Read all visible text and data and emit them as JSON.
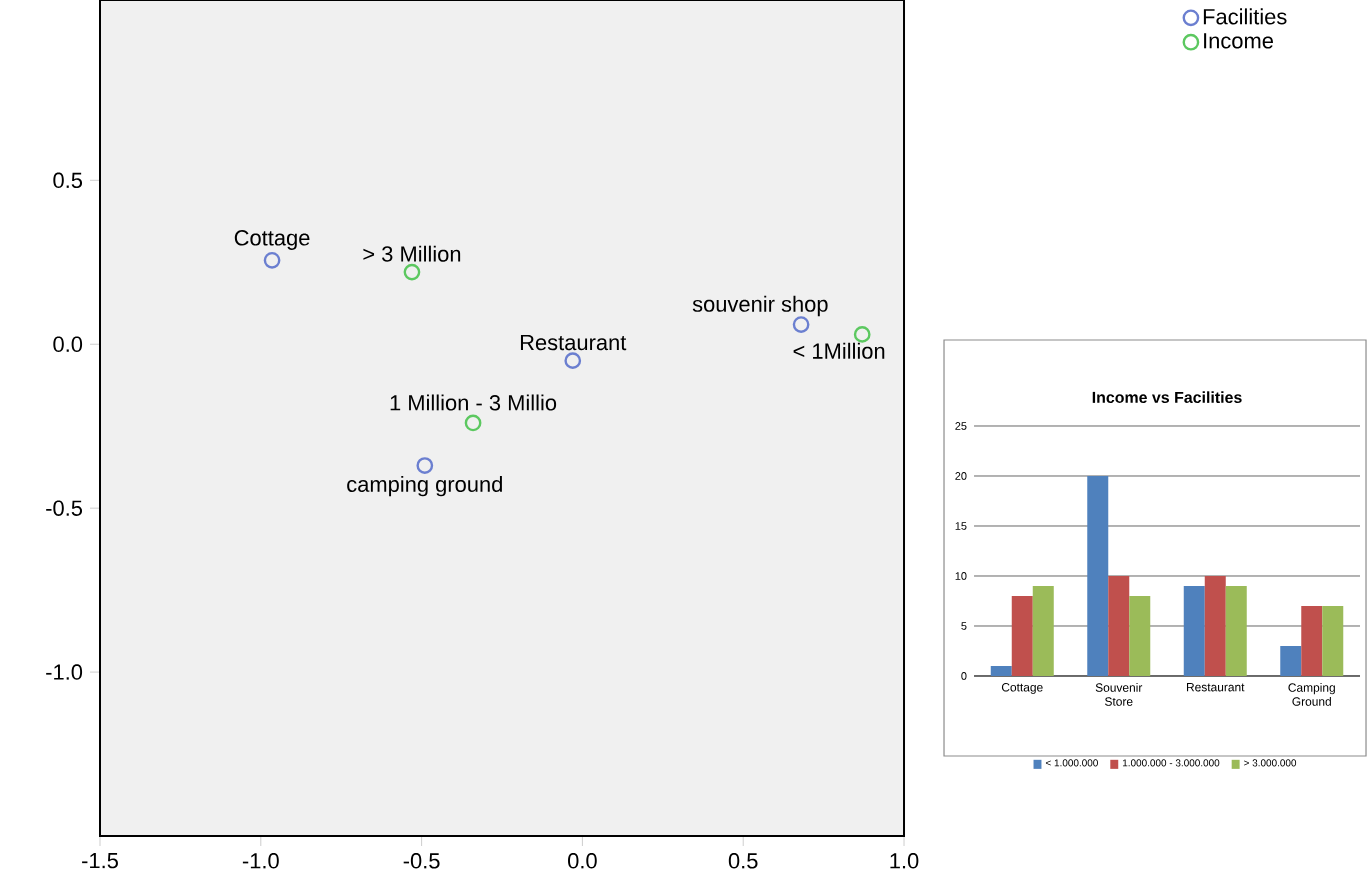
{
  "chart_data": [
    {
      "type": "scatter",
      "marker": "circle",
      "legend": "top right",
      "xlim": [
        -1.5,
        1.0
      ],
      "ylim": [
        -1.5,
        1.05
      ],
      "xticks": [
        -1.5,
        {
          "value": -1.0,
          "label": "-1.0"
        },
        -0.5,
        {
          "value": 0,
          "label": "0.0"
        },
        0.5,
        {
          "value": 1.0,
          "label": "1.0"
        }
      ],
      "yticks": [
        {
          "value": -1.0,
          "label": "-1.0"
        },
        -0.5,
        {
          "value": 0,
          "label": "0.0"
        },
        0.5
      ],
      "series": [
        {
          "name": "Facilities",
          "color": "#6b7fd0",
          "x": [
            -0.965,
            0.68,
            -0.03,
            -0.49
          ],
          "values": [
            0.256,
            0.06,
            -0.05,
            -0.37
          ]
        },
        {
          "name": "Income",
          "color": "#5cc860",
          "x": [
            0.87,
            -0.34,
            -0.53
          ],
          "values": [
            0.03,
            -0.24,
            0.22
          ]
        }
      ],
      "annotations": [
        {
          "text": "Cottage",
          "x": -0.965,
          "y": 0.256
        },
        {
          "text": "souvenir shop",
          "x": 0.68,
          "y": 0.06
        },
        {
          "text": "Restaurant",
          "x": -0.03,
          "y": -0.05
        },
        {
          "text": "camping ground",
          "x": -0.49,
          "y": -0.37
        },
        {
          "text": "< 1Million",
          "x": 0.87,
          "y": 0.03
        },
        {
          "text": "1 Million - 3 Millio",
          "x": -0.34,
          "y": -0.24
        },
        {
          "text": "> 3 Million",
          "x": -0.53,
          "y": 0.22
        }
      ]
    },
    {
      "type": "bar",
      "title": "Income vs Facilities",
      "categories": [
        "Cottage",
        "Souvenir Store",
        "Restaurant",
        "Camping Ground"
      ],
      "ylim": [
        0,
        25
      ],
      "yticks": [
        0,
        5,
        10,
        15,
        20,
        25
      ],
      "grid": "y",
      "legend": "bottom",
      "series": [
        {
          "name": "< 1.000.000",
          "color": "#4f81bd",
          "values": [
            1,
            20,
            9,
            3
          ]
        },
        {
          "name": "1.000.000 - 3.000.000",
          "color": "#c0504d",
          "values": [
            8,
            10,
            10,
            7
          ]
        },
        {
          "name": "> 3.000.000",
          "color": "#9bbb59",
          "values": [
            9,
            8,
            9,
            7
          ]
        }
      ]
    }
  ]
}
